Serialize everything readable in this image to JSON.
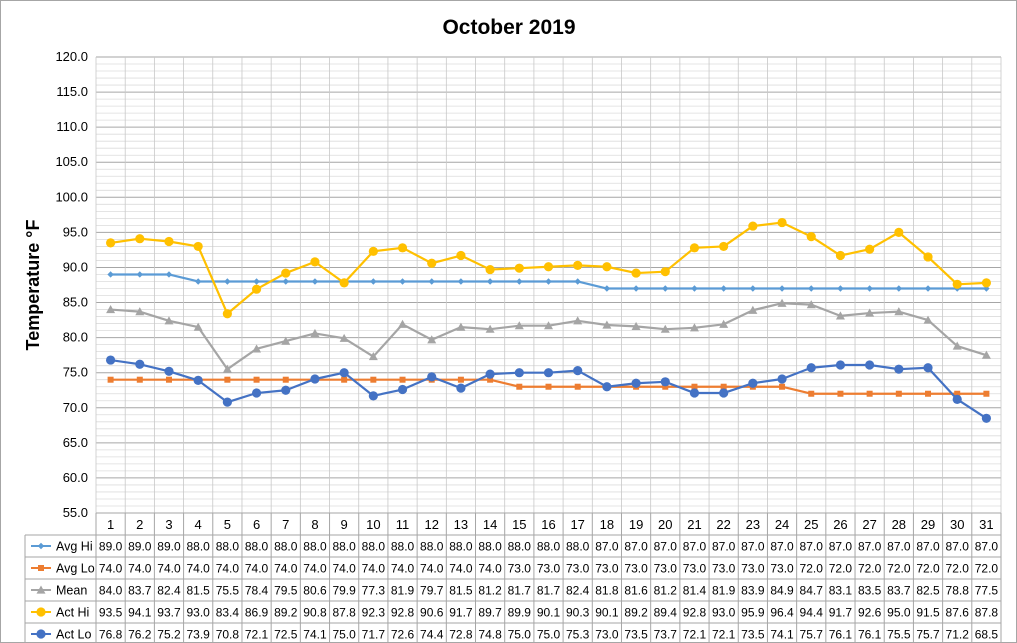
{
  "chart_data": {
    "type": "line",
    "title": "October 2019",
    "ylabel": "Temperature °F",
    "xlabel": "",
    "ylim": [
      55,
      120
    ],
    "ytick_step": 5,
    "minor_grid_step": 1,
    "grid": true,
    "legend": "data-table-left",
    "categories": [
      "1",
      "2",
      "3",
      "4",
      "5",
      "6",
      "7",
      "8",
      "9",
      "10",
      "11",
      "12",
      "13",
      "14",
      "15",
      "16",
      "17",
      "18",
      "19",
      "20",
      "21",
      "22",
      "23",
      "24",
      "25",
      "26",
      "27",
      "28",
      "29",
      "30",
      "31"
    ],
    "series": [
      {
        "name": "Avg Hi",
        "color": "#5b9bd5",
        "marker": "diamond",
        "values": [
          89.0,
          89.0,
          89.0,
          88.0,
          88.0,
          88.0,
          88.0,
          88.0,
          88.0,
          88.0,
          88.0,
          88.0,
          88.0,
          88.0,
          88.0,
          88.0,
          88.0,
          87.0,
          87.0,
          87.0,
          87.0,
          87.0,
          87.0,
          87.0,
          87.0,
          87.0,
          87.0,
          87.0,
          87.0,
          87.0,
          87.0
        ]
      },
      {
        "name": "Avg Lo",
        "color": "#ed7d31",
        "marker": "square",
        "values": [
          74.0,
          74.0,
          74.0,
          74.0,
          74.0,
          74.0,
          74.0,
          74.0,
          74.0,
          74.0,
          74.0,
          74.0,
          74.0,
          74.0,
          73.0,
          73.0,
          73.0,
          73.0,
          73.0,
          73.0,
          73.0,
          73.0,
          73.0,
          73.0,
          72.0,
          72.0,
          72.0,
          72.0,
          72.0,
          72.0,
          72.0
        ]
      },
      {
        "name": "Mean",
        "color": "#a5a5a5",
        "marker": "triangle",
        "values": [
          84.0,
          83.7,
          82.4,
          81.5,
          75.5,
          78.4,
          79.5,
          80.6,
          79.9,
          77.3,
          81.9,
          79.7,
          81.5,
          81.2,
          81.7,
          81.7,
          82.4,
          81.8,
          81.6,
          81.2,
          81.4,
          81.9,
          83.9,
          84.9,
          84.7,
          83.1,
          83.5,
          83.7,
          82.5,
          78.8,
          77.5
        ]
      },
      {
        "name": "Act Hi",
        "color": "#ffc000",
        "marker": "circle",
        "values": [
          93.5,
          94.1,
          93.7,
          93.0,
          83.4,
          86.9,
          89.2,
          90.8,
          87.8,
          92.3,
          92.8,
          90.6,
          91.7,
          89.7,
          89.9,
          90.1,
          90.3,
          90.1,
          89.2,
          89.4,
          92.8,
          93.0,
          95.9,
          96.4,
          94.4,
          91.7,
          92.6,
          95.0,
          91.5,
          87.6,
          87.8
        ]
      },
      {
        "name": "Act Lo",
        "color": "#4472c4",
        "marker": "circle",
        "values": [
          76.8,
          76.2,
          75.2,
          73.9,
          70.8,
          72.1,
          72.5,
          74.1,
          75.0,
          71.7,
          72.6,
          74.4,
          72.8,
          74.8,
          75.0,
          75.0,
          75.3,
          73.0,
          73.5,
          73.7,
          72.1,
          72.1,
          73.5,
          74.1,
          75.7,
          76.1,
          76.1,
          75.5,
          75.7,
          71.2,
          68.5
        ]
      }
    ]
  }
}
